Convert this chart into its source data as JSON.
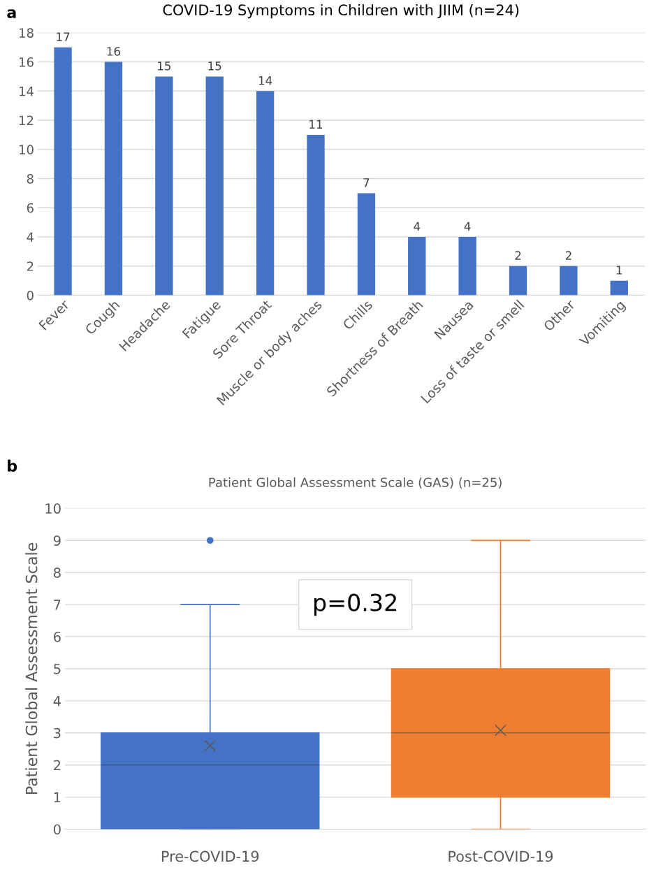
{
  "chart_data": [
    {
      "type": "bar",
      "title": "COVID-19 Symptoms in Children with JIIM (n=24)",
      "categories": [
        "Fever",
        "Cough",
        "Headache",
        "Fatigue",
        "Sore Throat",
        "Muscle or body aches",
        "Chills",
        "Shortness of Breath",
        "Nausea",
        "Loss of taste or smell",
        "Other",
        "Vomiting"
      ],
      "values": [
        17,
        16,
        15,
        15,
        14,
        11,
        7,
        4,
        4,
        2,
        2,
        1
      ],
      "color": "#4472c4",
      "ylim": [
        0,
        18
      ],
      "yticks": [
        0,
        2,
        4,
        6,
        8,
        10,
        12,
        14,
        16,
        18
      ],
      "grid": "y",
      "data_labels": true,
      "annotations": [
        "a"
      ]
    },
    {
      "type": "box",
      "title": "Patient Global Assessment Scale (GAS) (n=25)",
      "ylabel": "Patient Global Assessment Scale",
      "categories": [
        "Pre-COVID-19",
        "Post-COVID-19"
      ],
      "boxes": [
        {
          "low": 0,
          "q1": 0,
          "median": 2,
          "q3": 3,
          "high": 7,
          "mean": 2.6,
          "outliers": [
            9
          ]
        },
        {
          "low": 0,
          "q1": 1,
          "median": 3,
          "q3": 5,
          "high": 9,
          "mean": 3.08
        }
      ],
      "colors": [
        "#4472c4",
        "#ed7d31"
      ],
      "ylim": [
        0,
        10
      ],
      "yticks": [
        0,
        1,
        2,
        3,
        4,
        5,
        6,
        7,
        8,
        9,
        10
      ],
      "grid": "y",
      "annotations": [
        "b",
        "p=0.32"
      ]
    }
  ]
}
